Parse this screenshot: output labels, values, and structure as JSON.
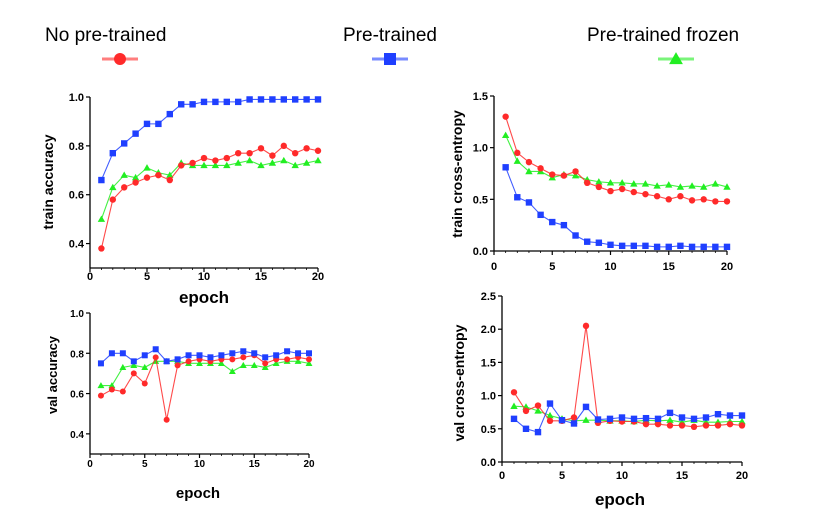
{
  "legend": [
    {
      "label": "No pre-trained",
      "color": "#ff2a2a",
      "marker": "circle"
    },
    {
      "label": "Pre-trained",
      "color": "#1f3fff",
      "marker": "square"
    },
    {
      "label": "Pre-trained frozen",
      "color": "#22ee22",
      "marker": "triangle"
    }
  ],
  "chart_data": [
    {
      "id": "train-accuracy",
      "type": "line",
      "xlabel": "epoch",
      "ylabel": "train accuracy",
      "xlim": [
        0,
        20
      ],
      "ylim": [
        0.3,
        1.0
      ],
      "xticks": [
        0,
        5,
        10,
        15,
        20
      ],
      "yticks": [
        0.4,
        0.6,
        0.8,
        1.0
      ],
      "ytick_labels": [
        "0.4",
        "0.6",
        "0.8",
        "1.0"
      ],
      "x": [
        1,
        2,
        3,
        4,
        5,
        6,
        7,
        8,
        9,
        10,
        11,
        12,
        13,
        14,
        15,
        16,
        17,
        18,
        19,
        20
      ],
      "series": [
        {
          "name": "No pre-trained",
          "values": [
            0.38,
            0.58,
            0.63,
            0.65,
            0.67,
            0.68,
            0.66,
            0.72,
            0.73,
            0.75,
            0.74,
            0.75,
            0.77,
            0.77,
            0.79,
            0.76,
            0.8,
            0.77,
            0.79,
            0.78
          ]
        },
        {
          "name": "Pre-trained",
          "values": [
            0.66,
            0.77,
            0.81,
            0.85,
            0.89,
            0.89,
            0.93,
            0.97,
            0.97,
            0.98,
            0.98,
            0.98,
            0.98,
            0.99,
            0.99,
            0.99,
            0.99,
            0.99,
            0.99,
            0.99
          ]
        },
        {
          "name": "Pre-trained frozen",
          "values": [
            0.5,
            0.63,
            0.68,
            0.67,
            0.71,
            0.69,
            0.68,
            0.73,
            0.72,
            0.72,
            0.72,
            0.72,
            0.73,
            0.74,
            0.72,
            0.73,
            0.74,
            0.72,
            0.73,
            0.74
          ]
        }
      ]
    },
    {
      "id": "train-cross-entropy",
      "type": "line",
      "xlabel": "",
      "ylabel": "train cross-entropy",
      "xlim": [
        0,
        20
      ],
      "ylim": [
        0,
        1.5
      ],
      "xticks": [
        0,
        5,
        10,
        15,
        20
      ],
      "yticks": [
        0.0,
        0.5,
        1.0,
        1.5
      ],
      "ytick_labels": [
        "0.0",
        "0.5",
        "1.0",
        "1.5"
      ],
      "x": [
        1,
        2,
        3,
        4,
        5,
        6,
        7,
        8,
        9,
        10,
        11,
        12,
        13,
        14,
        15,
        16,
        17,
        18,
        19,
        20
      ],
      "series": [
        {
          "name": "No pre-trained",
          "values": [
            1.3,
            0.95,
            0.86,
            0.8,
            0.74,
            0.73,
            0.77,
            0.66,
            0.62,
            0.58,
            0.6,
            0.57,
            0.55,
            0.53,
            0.5,
            0.53,
            0.49,
            0.5,
            0.48,
            0.48
          ]
        },
        {
          "name": "Pre-trained",
          "values": [
            0.81,
            0.52,
            0.47,
            0.35,
            0.28,
            0.25,
            0.15,
            0.09,
            0.08,
            0.06,
            0.05,
            0.05,
            0.05,
            0.04,
            0.04,
            0.05,
            0.04,
            0.04,
            0.04,
            0.04
          ]
        },
        {
          "name": "Pre-trained frozen",
          "values": [
            1.12,
            0.87,
            0.77,
            0.77,
            0.71,
            0.74,
            0.73,
            0.69,
            0.67,
            0.66,
            0.66,
            0.65,
            0.65,
            0.63,
            0.64,
            0.62,
            0.63,
            0.62,
            0.65,
            0.62
          ]
        }
      ]
    },
    {
      "id": "val-accuracy",
      "type": "line",
      "xlabel": "epoch",
      "ylabel": "val accuracy",
      "xlim": [
        0,
        20
      ],
      "ylim": [
        0.3,
        1.0
      ],
      "xticks": [
        0,
        5,
        10,
        15,
        20
      ],
      "yticks": [
        0.4,
        0.6,
        0.8,
        1.0
      ],
      "ytick_labels": [
        "0.4",
        "0.6",
        "0.8",
        "1.0"
      ],
      "x": [
        1,
        2,
        3,
        4,
        5,
        6,
        7,
        8,
        9,
        10,
        11,
        12,
        13,
        14,
        15,
        16,
        17,
        18,
        19,
        20
      ],
      "series": [
        {
          "name": "No pre-trained",
          "values": [
            0.59,
            0.62,
            0.61,
            0.7,
            0.65,
            0.78,
            0.47,
            0.74,
            0.76,
            0.77,
            0.76,
            0.77,
            0.77,
            0.78,
            0.79,
            0.75,
            0.77,
            0.77,
            0.78,
            0.77
          ]
        },
        {
          "name": "Pre-trained",
          "values": [
            0.75,
            0.8,
            0.8,
            0.76,
            0.79,
            0.82,
            0.76,
            0.77,
            0.79,
            0.79,
            0.78,
            0.79,
            0.8,
            0.81,
            0.8,
            0.78,
            0.79,
            0.81,
            0.8,
            0.8
          ]
        },
        {
          "name": "Pre-trained frozen",
          "values": [
            0.64,
            0.64,
            0.73,
            0.74,
            0.73,
            0.76,
            0.76,
            0.76,
            0.75,
            0.75,
            0.75,
            0.75,
            0.71,
            0.74,
            0.74,
            0.73,
            0.75,
            0.76,
            0.76,
            0.75
          ]
        }
      ]
    },
    {
      "id": "val-cross-entropy",
      "type": "line",
      "xlabel": "epoch",
      "ylabel": "val cross-entropy",
      "xlim": [
        0,
        20
      ],
      "ylim": [
        0,
        2.5
      ],
      "xticks": [
        0,
        5,
        10,
        15,
        20
      ],
      "yticks": [
        0.0,
        0.5,
        1.0,
        1.5,
        2.0,
        2.5
      ],
      "ytick_labels": [
        "0.0",
        "0.5",
        "1.0",
        "1.5",
        "2.0",
        "2.5"
      ],
      "x": [
        1,
        2,
        3,
        4,
        5,
        6,
        7,
        8,
        9,
        10,
        11,
        12,
        13,
        14,
        15,
        16,
        17,
        18,
        19,
        20
      ],
      "series": [
        {
          "name": "No pre-trained",
          "values": [
            1.05,
            0.77,
            0.85,
            0.62,
            0.62,
            0.67,
            2.05,
            0.59,
            0.62,
            0.61,
            0.61,
            0.57,
            0.57,
            0.55,
            0.55,
            0.53,
            0.55,
            0.55,
            0.57,
            0.55
          ]
        },
        {
          "name": "Pre-trained",
          "values": [
            0.65,
            0.5,
            0.45,
            0.88,
            0.63,
            0.58,
            0.83,
            0.64,
            0.65,
            0.67,
            0.65,
            0.66,
            0.65,
            0.74,
            0.67,
            0.65,
            0.67,
            0.72,
            0.7,
            0.7
          ]
        },
        {
          "name": "Pre-trained frozen",
          "values": [
            0.84,
            0.83,
            0.77,
            0.7,
            0.65,
            0.62,
            0.63,
            0.63,
            0.62,
            0.62,
            0.61,
            0.63,
            0.62,
            0.63,
            0.6,
            0.63,
            0.6,
            0.6,
            0.61,
            0.61
          ]
        }
      ]
    }
  ]
}
